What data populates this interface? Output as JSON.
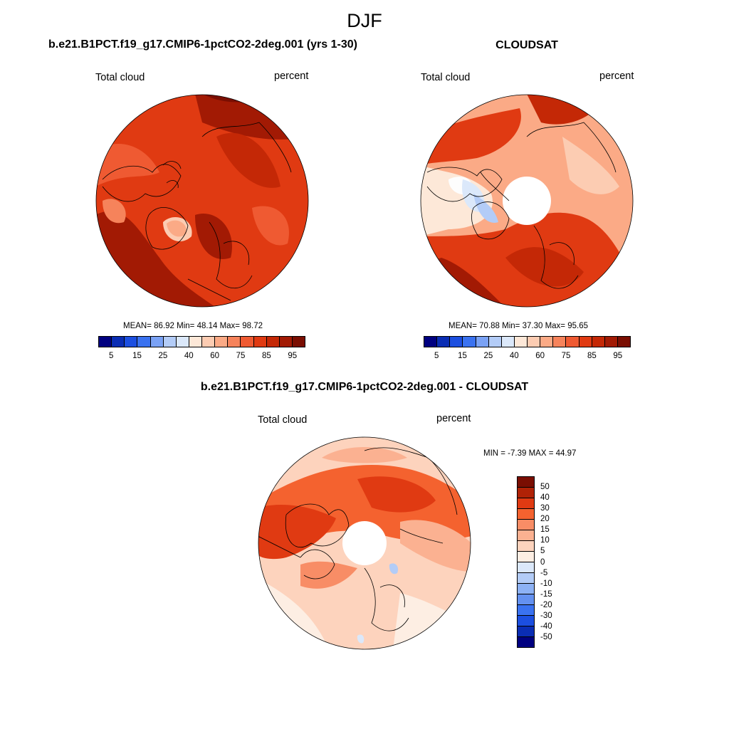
{
  "figure": {
    "title": "DJF"
  },
  "panels": [
    {
      "id": "model",
      "title": "b.e21.B1PCT.f19_g17.CMIP6-1pctCO2-2deg.001 (yrs 1-30)",
      "left_label": "Total cloud",
      "right_label": "percent",
      "stats": {
        "mean_label": "MEAN=",
        "mean": "86.92",
        "min_label": "Min=",
        "min": "48.14",
        "max_label": "Max=",
        "max": "98.72"
      }
    },
    {
      "id": "obs",
      "title": "CLOUDSAT",
      "left_label": "Total cloud",
      "right_label": "percent",
      "stats": {
        "mean_label": "MEAN=",
        "mean": "70.88",
        "min_label": "Min=",
        "min": "37.30",
        "max_label": "Max=",
        "max": "95.65"
      }
    },
    {
      "id": "diff",
      "title": "b.e21.B1PCT.f19_g17.CMIP6-1pctCO2-2deg.001 - CLOUDSAT",
      "left_label": "Total cloud",
      "right_label": "percent",
      "stats_text": "MIN =  -7.39 MAX =  44.97"
    }
  ],
  "colorbars": {
    "abs": {
      "colors": [
        "#000080",
        "#0a2db4",
        "#1c4fe0",
        "#3a72f0",
        "#7aa2f5",
        "#b3ccf7",
        "#dbe8fa",
        "#fde8d8",
        "#fcccb2",
        "#fbaa86",
        "#f6835b",
        "#ef5a32",
        "#e03a12",
        "#c42806",
        "#a21a04",
        "#7a0e02"
      ],
      "ticks": [
        "5",
        "15",
        "25",
        "40",
        "60",
        "75",
        "85",
        "95"
      ]
    },
    "diff": {
      "colors_top_to_bottom": [
        "#7a0e02",
        "#b02206",
        "#e03a12",
        "#f4622f",
        "#f88d66",
        "#fbb191",
        "#fdd3bd",
        "#fdeee3",
        "#dbe8fa",
        "#b3ccf7",
        "#8db2f5",
        "#6491f0",
        "#3a72f0",
        "#1c4fe0",
        "#0a2db4",
        "#000080"
      ],
      "ticks": [
        "50",
        "40",
        "30",
        "20",
        "15",
        "10",
        "5",
        "0",
        "-5",
        "-10",
        "-15",
        "-20",
        "-30",
        "-40",
        "-50"
      ]
    }
  }
}
